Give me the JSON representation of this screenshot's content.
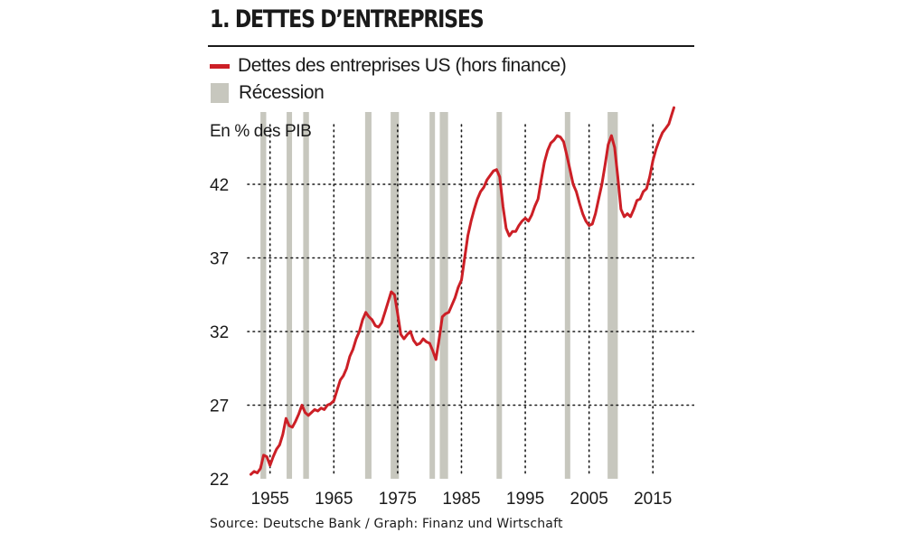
{
  "title": "1. DETTES D’ENTREPRISES",
  "source": "Source: Deutsche Bank / Graph: Finanz und Wirtschaft",
  "colors": {
    "line": "#cc1f26",
    "recession": "#c7c7be",
    "grid": "#1a1a1a"
  },
  "chart_data": {
    "type": "line",
    "title": "1. DETTES D’ENTREPRISES",
    "ylabel": "En % des PIB",
    "xlabel": "",
    "xlim": [
      1951.5,
      2019.5
    ],
    "ylim": [
      22,
      47.5
    ],
    "y_ticks": [
      22,
      27,
      32,
      37,
      42
    ],
    "x_ticks": [
      1955,
      1965,
      1975,
      1985,
      1995,
      2005,
      2015
    ],
    "x_tick_labels": [
      "1955",
      "1965",
      "1975",
      "1985",
      "1995",
      "2005",
      "2015"
    ],
    "grid": "dotted",
    "legend": {
      "placement": "top-left",
      "entries": [
        "Dettes des entreprises US (hors finance)",
        "Récession"
      ]
    },
    "recession_periods": [
      [
        1953.5,
        1954.4
      ],
      [
        1957.6,
        1958.3
      ],
      [
        1960.2,
        1961.1
      ],
      [
        1969.9,
        1970.9
      ],
      [
        1973.9,
        1975.2
      ],
      [
        1980.0,
        1980.6
      ],
      [
        1981.6,
        1982.9
      ],
      [
        1990.5,
        1991.2
      ],
      [
        2001.2,
        2001.9
      ],
      [
        2007.9,
        2009.5
      ]
    ],
    "series": [
      {
        "name": "Dettes des entreprises US (hors finance)",
        "x": [
          1952.0,
          1952.5,
          1953.0,
          1953.5,
          1954.0,
          1954.5,
          1955.0,
          1955.5,
          1956.0,
          1956.5,
          1957.0,
          1957.5,
          1958.0,
          1958.5,
          1959.0,
          1959.5,
          1960.0,
          1960.5,
          1961.0,
          1961.5,
          1962.0,
          1962.5,
          1963.0,
          1963.5,
          1964.0,
          1964.5,
          1965.0,
          1965.5,
          1966.0,
          1966.5,
          1967.0,
          1967.5,
          1968.0,
          1968.5,
          1969.0,
          1969.5,
          1970.0,
          1970.5,
          1971.0,
          1971.5,
          1972.0,
          1972.5,
          1973.0,
          1973.5,
          1974.0,
          1974.5,
          1975.0,
          1975.5,
          1976.0,
          1976.5,
          1977.0,
          1977.5,
          1978.0,
          1978.5,
          1979.0,
          1979.5,
          1980.0,
          1980.5,
          1981.0,
          1981.5,
          1982.0,
          1982.5,
          1983.0,
          1983.5,
          1984.0,
          1984.5,
          1985.0,
          1985.5,
          1986.0,
          1986.5,
          1987.0,
          1987.5,
          1988.0,
          1988.5,
          1989.0,
          1989.5,
          1990.0,
          1990.5,
          1991.0,
          1991.5,
          1992.0,
          1992.5,
          1993.0,
          1993.5,
          1994.0,
          1994.5,
          1995.0,
          1995.5,
          1996.0,
          1996.5,
          1997.0,
          1997.5,
          1998.0,
          1998.5,
          1999.0,
          1999.5,
          2000.0,
          2000.5,
          2001.0,
          2001.5,
          2002.0,
          2002.5,
          2003.0,
          2003.5,
          2004.0,
          2004.5,
          2005.0,
          2005.5,
          2006.0,
          2006.5,
          2007.0,
          2007.5,
          2008.0,
          2008.5,
          2009.0,
          2009.5,
          2010.0,
          2010.5,
          2011.0,
          2011.5,
          2012.0,
          2012.5,
          2013.0,
          2013.5,
          2014.0,
          2014.5,
          2015.0,
          2015.5,
          2016.0,
          2016.5,
          2017.0,
          2017.5,
          2018.0,
          2018.3
        ],
        "values": [
          22.3,
          22.5,
          22.4,
          22.7,
          23.6,
          23.5,
          22.9,
          23.5,
          24.0,
          24.3,
          25.0,
          26.1,
          25.6,
          25.5,
          25.9,
          26.4,
          27.0,
          26.5,
          26.3,
          26.5,
          26.7,
          26.6,
          26.8,
          26.7,
          27.0,
          27.1,
          27.3,
          28.0,
          28.7,
          29.0,
          29.5,
          30.3,
          30.8,
          31.5,
          32.0,
          32.8,
          33.3,
          33.0,
          32.8,
          32.4,
          32.3,
          32.6,
          33.3,
          34.0,
          34.7,
          34.5,
          33.2,
          31.8,
          31.5,
          31.8,
          32.0,
          31.4,
          31.1,
          31.2,
          31.5,
          31.3,
          31.2,
          30.7,
          30.1,
          31.5,
          33.0,
          33.2,
          33.3,
          33.8,
          34.3,
          35.0,
          35.5,
          37.0,
          38.5,
          39.5,
          40.3,
          41.0,
          41.5,
          41.8,
          42.3,
          42.6,
          42.9,
          43.0,
          42.5,
          40.5,
          39.0,
          38.5,
          38.8,
          38.8,
          39.2,
          39.5,
          39.7,
          39.5,
          39.9,
          40.5,
          41.0,
          42.3,
          43.5,
          44.3,
          44.8,
          45.0,
          45.3,
          45.2,
          44.9,
          44.0,
          43.0,
          42.0,
          41.5,
          40.7,
          40.0,
          39.5,
          39.2,
          39.3,
          40.0,
          41.0,
          42.0,
          43.3,
          44.7,
          45.3,
          44.5,
          42.5,
          40.3,
          39.8,
          40.0,
          39.8,
          40.3,
          40.9,
          41.0,
          41.5,
          41.7,
          42.5,
          43.6,
          44.4,
          45.0,
          45.5,
          45.8,
          46.1,
          46.8,
          47.2
        ]
      }
    ]
  }
}
